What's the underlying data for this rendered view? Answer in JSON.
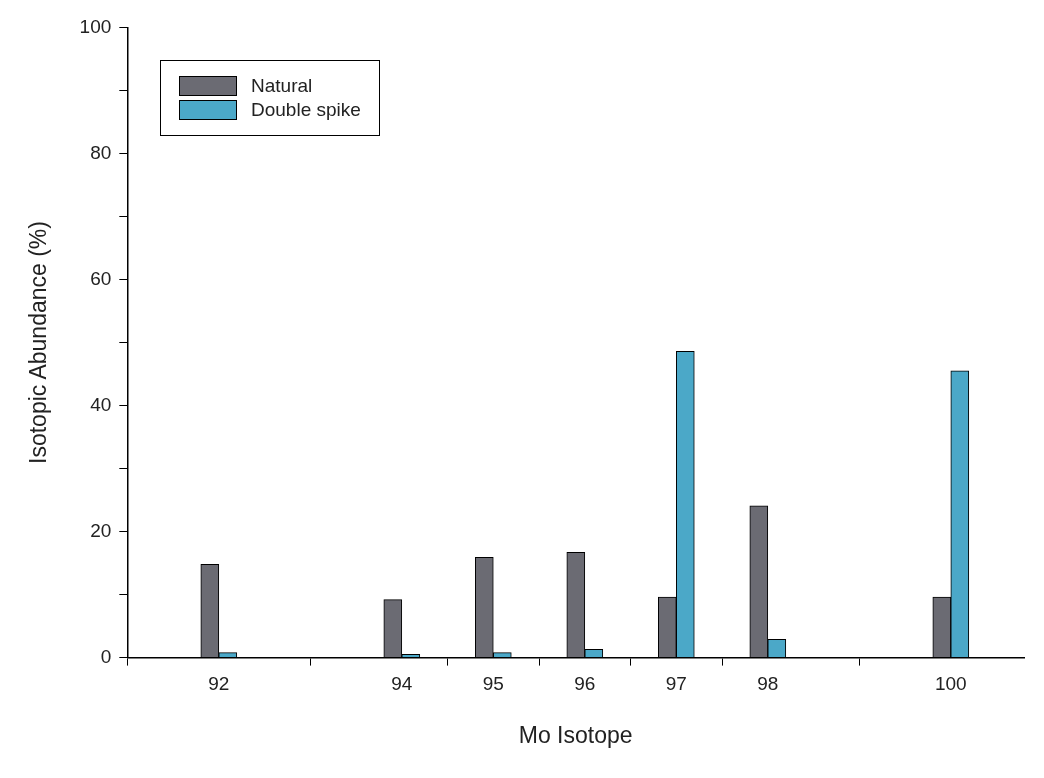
{
  "chart_data": {
    "type": "bar",
    "xlabel": "Mo Isotope",
    "ylabel": "Isotopic Abundance (%)",
    "x": [
      92,
      94,
      95,
      96,
      97,
      98,
      100
    ],
    "series": [
      {
        "name": "Natural",
        "color": "#6b6b73",
        "values": [
          14.8,
          9.2,
          15.9,
          16.7,
          9.6,
          24.1,
          9.6
        ]
      },
      {
        "name": "Double spike",
        "color": "#4ba8c8",
        "values": [
          0.8,
          0.5,
          0.8,
          1.3,
          48.6,
          2.9,
          45.5
        ]
      }
    ],
    "xlim": [
      91,
      100.8
    ],
    "xticks": [
      92,
      94,
      95,
      96,
      97,
      98,
      100
    ],
    "ylim": [
      0,
      100
    ],
    "yticks": [
      0,
      {
        "value": 10,
        "label": null
      },
      20,
      {
        "value": 30,
        "label": null
      },
      40,
      {
        "value": 50,
        "label": null
      },
      60,
      {
        "value": 70,
        "label": null
      },
      80,
      {
        "value": 90,
        "label": null
      },
      100
    ],
    "grid": false,
    "legend": "top left"
  }
}
